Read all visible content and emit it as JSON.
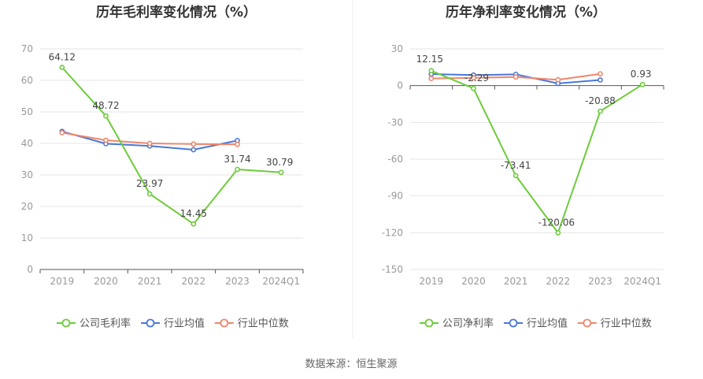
{
  "source": "数据来源：恒生聚源",
  "colors": {
    "company": "#6dcc3a",
    "industry_avg": "#4a78d8",
    "industry_median": "#f0876a",
    "grid": "#e6e6e6",
    "axis": "#555555",
    "divider": "#eeeeee"
  },
  "chart_data": [
    {
      "type": "line",
      "title": "历年毛利率变化情况（%）",
      "categories": [
        "2019",
        "2020",
        "2021",
        "2022",
        "2023",
        "2024Q1"
      ],
      "ylim": [
        0,
        70
      ],
      "yticks": [
        0,
        10,
        20,
        30,
        40,
        50,
        60,
        70
      ],
      "ytick_labels": [
        "0",
        "10",
        "20",
        "30",
        "40",
        "50",
        "60",
        "70"
      ],
      "grid": true,
      "legend_position": "bottom",
      "series": [
        {
          "name": "公司毛利率",
          "key": "company",
          "values": [
            64.12,
            48.72,
            23.97,
            14.45,
            31.74,
            30.79
          ],
          "labels": [
            "64.12",
            "48.72",
            "23.97",
            "14.45",
            "31.74",
            "30.79"
          ]
        },
        {
          "name": "行业均值",
          "key": "industry_avg",
          "values": [
            43.8,
            39.9,
            39.2,
            38.0,
            40.9,
            null
          ]
        },
        {
          "name": "行业中位数",
          "key": "industry_median",
          "values": [
            43.4,
            41.0,
            40.0,
            39.8,
            39.7,
            null
          ]
        }
      ]
    },
    {
      "type": "line",
      "title": "历年净利率变化情况（%）",
      "categories": [
        "2019",
        "2020",
        "2021",
        "2022",
        "2023",
        "2024Q1"
      ],
      "ylim": [
        -150,
        30
      ],
      "yticks": [
        -150,
        -120,
        -90,
        -60,
        -30,
        0,
        30
      ],
      "ytick_labels": [
        "-150",
        "-120",
        "-90",
        "-60",
        "-30",
        "0",
        "30"
      ],
      "grid": true,
      "legend_position": "bottom",
      "series": [
        {
          "name": "公司净利率",
          "key": "company",
          "values": [
            12.15,
            -2.29,
            -73.41,
            -120.06,
            -20.88,
            0.93
          ],
          "labels": [
            "12.15",
            "-2.29",
            "-73.41",
            "-120.06",
            "-20.88",
            "0.93"
          ]
        },
        {
          "name": "行业均值",
          "key": "industry_avg",
          "values": [
            9.4,
            8.6,
            9.2,
            1.8,
            4.6,
            null
          ]
        },
        {
          "name": "行业中位数",
          "key": "industry_median",
          "values": [
            5.8,
            6.4,
            7.0,
            4.8,
            9.6,
            null
          ]
        }
      ]
    }
  ]
}
